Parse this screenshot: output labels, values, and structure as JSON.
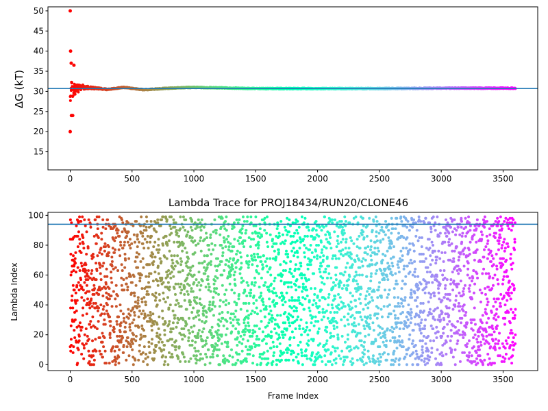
{
  "chart_data": [
    {
      "type": "scatter",
      "title": "",
      "xlabel": "",
      "ylabel": "ΔG (kT)",
      "xlim": [
        -180,
        3780
      ],
      "ylim": [
        10.5,
        51
      ],
      "x_ticks": [
        0,
        500,
        1000,
        1500,
        2000,
        2500,
        3000,
        3500
      ],
      "y_ticks": [
        15,
        20,
        25,
        30,
        35,
        40,
        45,
        50
      ],
      "grid": false,
      "colormap": "rainbow (red at frame 0 → violet at frame 3600)",
      "reference_line": {
        "y": 30.7,
        "color": "#1f77b4"
      },
      "series": [
        {
          "points_described": "Running free-energy estimate per frame, frames 0–3600",
          "x_range": [
            0,
            3600
          ],
          "early_outliers": [
            [
              0,
              50
            ],
            [
              0,
              20
            ],
            [
              3,
              40
            ],
            [
              8,
              37
            ],
            [
              10,
              24
            ],
            [
              20,
              24
            ],
            [
              30,
              36.5
            ]
          ],
          "convergence": [
            [
              0,
              30
            ],
            [
              50,
              30.5
            ],
            [
              100,
              31
            ],
            [
              200,
              30.8
            ],
            [
              300,
              30.5
            ],
            [
              430,
              31
            ],
            [
              600,
              30.4
            ],
            [
              800,
              30.8
            ],
            [
              1000,
              31
            ],
            [
              1500,
              30.7
            ],
            [
              2000,
              30.7
            ],
            [
              2500,
              30.7
            ],
            [
              3000,
              30.8
            ],
            [
              3600,
              30.8
            ]
          ]
        }
      ]
    },
    {
      "type": "scatter",
      "title": "Lambda Trace for PROJ18434/RUN20/CLONE46",
      "xlabel": "Frame Index",
      "ylabel": "Lambda Index",
      "xlim": [
        -180,
        3780
      ],
      "ylim": [
        -4,
        102
      ],
      "x_ticks": [
        0,
        500,
        1000,
        1500,
        2000,
        2500,
        3000,
        3500
      ],
      "y_ticks": [
        0,
        20,
        40,
        60,
        80,
        100
      ],
      "grid": false,
      "colormap": "rainbow (red at frame 0 → violet at frame 3600)",
      "reference_line": {
        "y": 94,
        "color": "#1f77b4"
      },
      "series": [
        {
          "points_described": "Lambda window index visited at each frame; uniformly spread over 0–99 for frames 0–3600",
          "x_range": [
            0,
            3600
          ],
          "y_range": [
            0,
            99
          ],
          "n_points": 3600
        }
      ]
    }
  ]
}
